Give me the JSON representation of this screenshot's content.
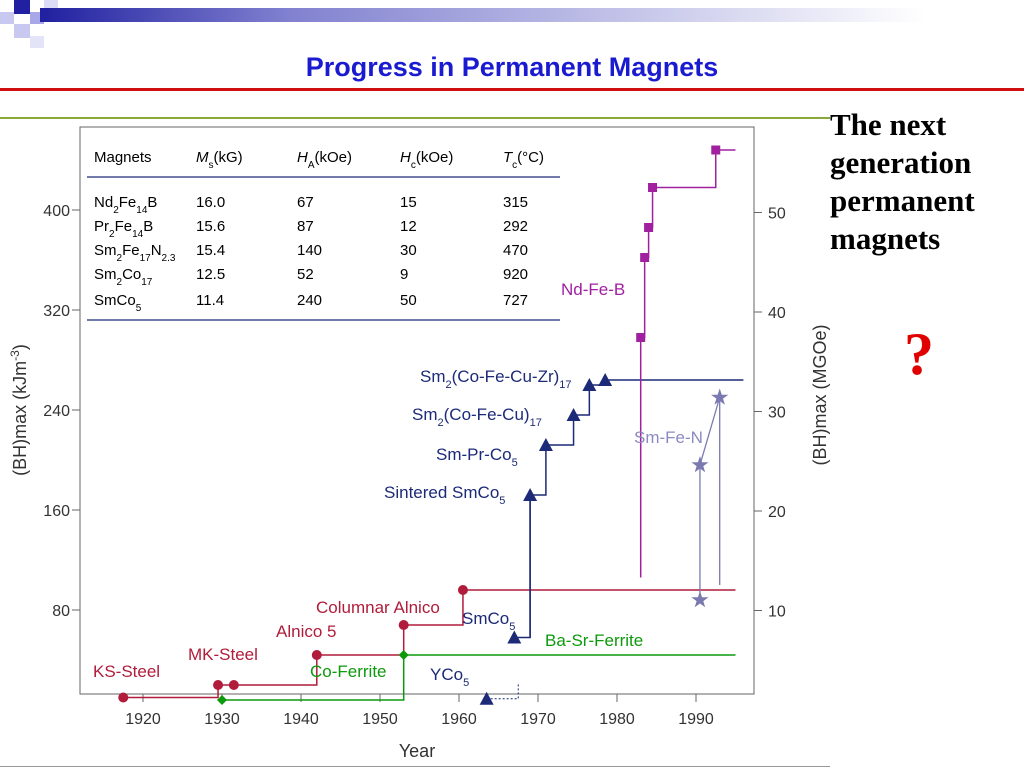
{
  "slide": {
    "title": "Progress in Permanent Magnets",
    "side_text": "The next generation permanent magnets",
    "side_question": "?"
  },
  "colors": {
    "title": "#1a1ad0",
    "red_series": "#b01c3a",
    "green_series": "#0c9a0c",
    "navy_series": "#1c2a78",
    "magenta_series": "#a020a0",
    "smfen_series": "#7a7ab0",
    "question_mark": "#e00000"
  },
  "table": {
    "headers": [
      "Magnets",
      "Ms(kG)",
      "HA(kOe)",
      "Hc(kOe)",
      "Tc(°C)"
    ],
    "rows": [
      [
        "Nd2Fe14B",
        "16.0",
        "67",
        "15",
        "315"
      ],
      [
        "Pr2Fe14B",
        "15.6",
        "87",
        "12",
        "292"
      ],
      [
        "Sm2Fe17N2.3",
        "15.4",
        "140",
        "30",
        "470"
      ],
      [
        "Sm2Co17",
        "12.5",
        "52",
        "9",
        "920"
      ],
      [
        "SmCo5",
        "11.4",
        "240",
        "50",
        "727"
      ]
    ]
  },
  "chart_data": {
    "type": "line",
    "xlabel": "Year",
    "ylabel": "(BH)max (kJm-3)",
    "ylabel_right": "(BH)max (MGOe)",
    "xlim": [
      1910,
      1996
    ],
    "ylim": [
      0,
      480
    ],
    "x_ticks": [
      1920,
      1930,
      1940,
      1950,
      1960,
      1970,
      1980,
      1990
    ],
    "y_ticks": [
      80,
      160,
      240,
      320,
      400
    ],
    "y_ticks_right": [
      10,
      20,
      30,
      40,
      50
    ],
    "series": [
      {
        "name": "KS-Steel / MK-Steel / Alnico",
        "color": "#b01c3a",
        "marker": "circle",
        "step": true,
        "x": [
          1917.5,
          1929.5,
          1931.5,
          1942,
          1953,
          1960.5
        ],
        "y": [
          10,
          20,
          20,
          44,
          68,
          96
        ],
        "end_x": 1995
      },
      {
        "name": "Co-Ferrite / Ba-Sr-Ferrite",
        "color": "#0c9a0c",
        "marker": "diamond",
        "step": true,
        "x": [
          1930,
          1953
        ],
        "y": [
          8,
          44
        ],
        "end_x": 1995
      },
      {
        "name": "SmCo5 / Sm2Co17",
        "color": "#1c2a78",
        "marker": "triangle",
        "step": true,
        "x": [
          1967,
          1969,
          1971,
          1974.5,
          1976.5,
          1978.5
        ],
        "y": [
          58,
          172,
          212,
          236,
          260,
          264
        ],
        "end_x": 1996
      },
      {
        "name": "YCo5",
        "color": "#1c2a78",
        "marker": "triangle",
        "x": [
          1963.5
        ],
        "y": [
          9
        ]
      },
      {
        "name": "Nd-Fe-B",
        "color": "#a020a0",
        "marker": "square",
        "step": true,
        "x": [
          1983,
          1983.5,
          1984,
          1984.5,
          1992.5
        ],
        "y": [
          298,
          362,
          386,
          418,
          448
        ],
        "end_x": 1995
      },
      {
        "name": "Sm-Fe-N",
        "color": "#7a7ab0",
        "marker": "star",
        "x": [
          1990.5,
          1990.5,
          1993
        ],
        "y": [
          88,
          196,
          250
        ]
      }
    ],
    "annotations": [
      "KS-Steel",
      "MK-Steel",
      "Alnico 5",
      "Columnar Alnico",
      "Co-Ferrite",
      "Ba-Sr-Ferrite",
      "YCo5",
      "SmCo5",
      "Sintered SmCo5",
      "Sm-Pr-Co5",
      "Sm2(Co-Fe-Cu)17",
      "Sm2(Co-Fe-Cu-Zr)17",
      "Nd-Fe-B",
      "Sm-Fe-N"
    ]
  }
}
